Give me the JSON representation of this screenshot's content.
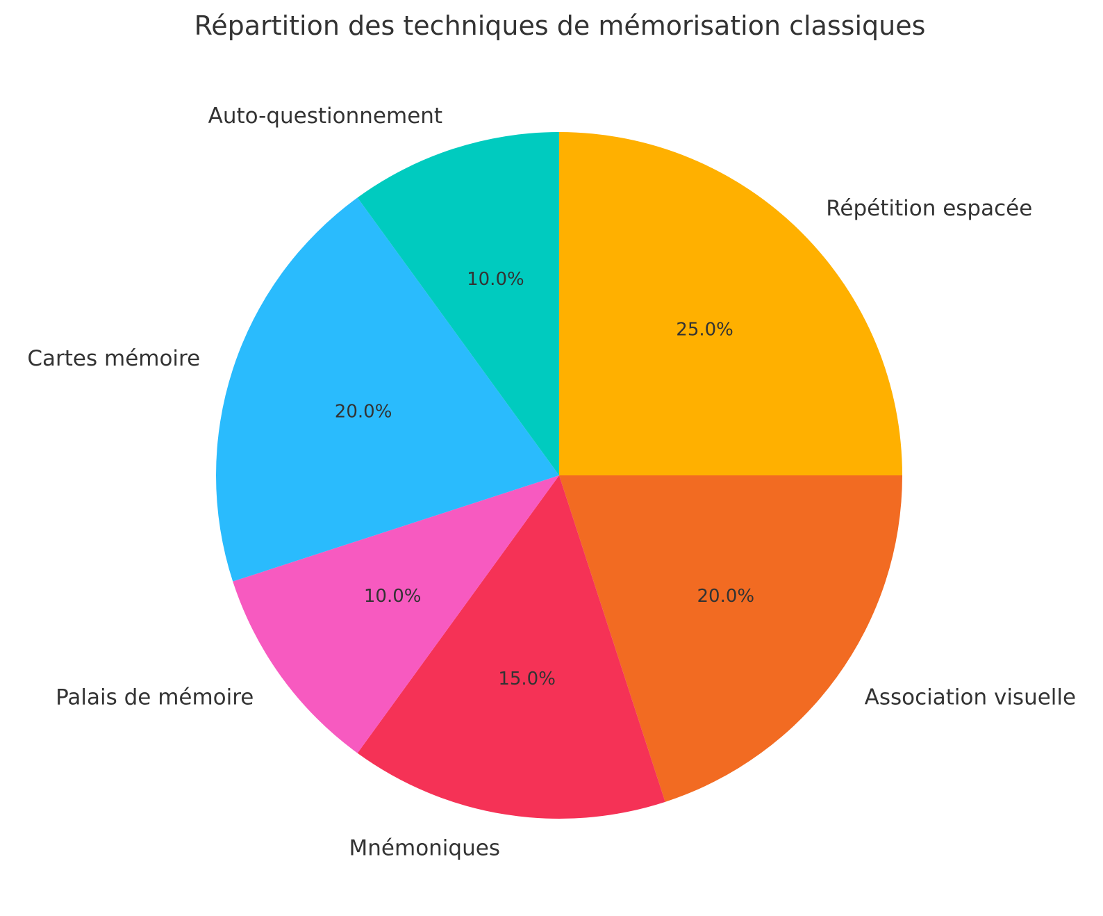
{
  "chart_data": {
    "type": "pie",
    "title": "Répartition des techniques de mémorisation classiques",
    "start_angle_deg": 90,
    "direction": "clockwise",
    "slices": [
      {
        "label": "Répétition espacée",
        "value": 25.0,
        "pct_label": "25.0%",
        "color": "#FFB000"
      },
      {
        "label": "Association visuelle",
        "value": 20.0,
        "pct_label": "20.0%",
        "color": "#F26B22"
      },
      {
        "label": "Mnémoniques",
        "value": 15.0,
        "pct_label": "15.0%",
        "color": "#F53256"
      },
      {
        "label": "Palais de mémoire",
        "value": 10.0,
        "pct_label": "10.0%",
        "color": "#F75AC0"
      },
      {
        "label": "Cartes mémoire",
        "value": 20.0,
        "pct_label": "20.0%",
        "color": "#2ABBFD"
      },
      {
        "label": "Auto-questionnement",
        "value": 10.0,
        "pct_label": "10.0%",
        "color": "#00CBBF"
      }
    ]
  }
}
